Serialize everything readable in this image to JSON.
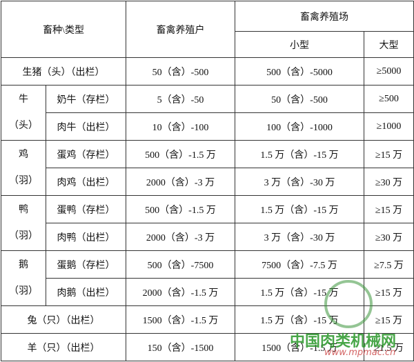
{
  "table": {
    "header": {
      "type_label": "畜种\\类型",
      "household": "畜禽养殖户",
      "farm": "畜禽养殖场",
      "small": "小型",
      "large": "大型"
    },
    "rows": [
      {
        "label": "生猪（头）（出栏）",
        "household": "50（含）-500",
        "small": "500（含）-5000",
        "large": "≥5000"
      },
      {
        "species": "牛",
        "unit": "（头）",
        "items": [
          {
            "label": "奶牛（存栏）",
            "household": "5（含）-50",
            "small": "50（含）-500",
            "large": "≥500"
          },
          {
            "label": "肉牛（出栏）",
            "household": "10（含）-100",
            "small": "100（含）-1000",
            "large": "≥1000"
          }
        ]
      },
      {
        "species": "鸡",
        "unit": "（羽）",
        "items": [
          {
            "label": "蛋鸡（存栏）",
            "household": "500（含）-1.5 万",
            "small": "1.5 万（含）-15 万",
            "large": "≥15 万"
          },
          {
            "label": "肉鸡（出栏）",
            "household": "2000（含）-3 万",
            "small": "3 万（含）-30 万",
            "large": "≥30 万"
          }
        ]
      },
      {
        "species": "鸭",
        "unit": "（羽）",
        "items": [
          {
            "label": "蛋鸭（存栏）",
            "household": "500（含）-1.5 万",
            "small": "1.5 万（含）-15 万",
            "large": "≥15 万"
          },
          {
            "label": "肉鸭（出栏）",
            "household": "2000（含）-3 万",
            "small": "3 万（含）-30 万",
            "large": "≥30 万"
          }
        ]
      },
      {
        "species": "鹅",
        "unit": "（羽）",
        "items": [
          {
            "label": "蛋鹅（存栏）",
            "household": "500（含）-7500",
            "small": "7500（含）-7.5 万",
            "large": "≥7.5 万"
          },
          {
            "label": "肉鹅（出栏）",
            "household": "2000（含）-1.5 万",
            "small": "1.5 万（含）-15 万",
            "large": "≥15 万"
          }
        ]
      },
      {
        "label": "兔（只）（出栏）",
        "household": "1500（含）-1.5 万",
        "small": "1.5 万（含）-15 万",
        "large": "≥15 万"
      },
      {
        "label": "羊（只）（出栏）",
        "household": "150（含）-1500",
        "small": "1500（含）-1.5 万",
        "large": "≥1.5 万"
      }
    ]
  },
  "watermark": {
    "text": "中国肉类机械网",
    "url": "www.mpmac.cn"
  }
}
